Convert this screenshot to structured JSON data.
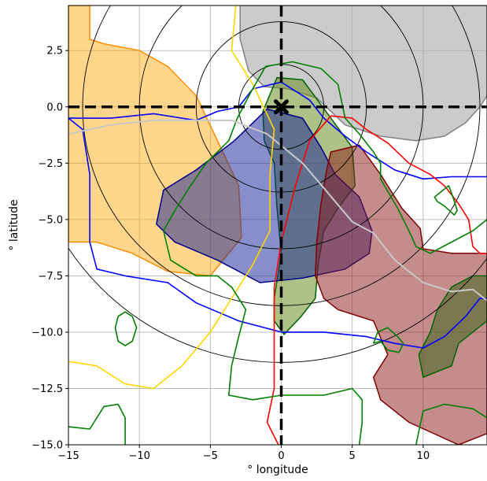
{
  "chart_data": {
    "type": "contour-map",
    "title": "",
    "xlabel": "° longitude",
    "ylabel": "° latitude",
    "xlim": [
      -15,
      14.5
    ],
    "ylim": [
      -15,
      4.5
    ],
    "xticks": [
      -15,
      -10,
      -5,
      0,
      5,
      10
    ],
    "xtick_labels": [
      "−15",
      "−10",
      "−5",
      "0",
      "5",
      "10"
    ],
    "yticks": [
      2.5,
      0.0,
      -2.5,
      -5.0,
      -7.5,
      -10.0,
      -12.5,
      -15.0
    ],
    "ytick_labels": [
      "2.5",
      "0.0",
      "−2.5",
      "−5.0",
      "−7.5",
      "−10.0",
      "−12.5",
      "−15.0"
    ],
    "grid": true,
    "marker": {
      "x": 0,
      "y": 0,
      "symbol": "X",
      "color": "#000000"
    },
    "reference_lines": [
      {
        "orientation": "horizontal",
        "value": 0,
        "style": "dashed",
        "color": "#000000"
      },
      {
        "orientation": "vertical",
        "value": 0,
        "style": "dashed",
        "color": "#000000"
      }
    ],
    "concentric_circles": {
      "center": [
        0,
        0
      ],
      "radii_deg": [
        3,
        6,
        10,
        14,
        18
      ],
      "color": "#000000"
    },
    "filled_regions": [
      {
        "color": "#a9a9a9",
        "edge": "#808080",
        "alpha": 0.6,
        "points": [
          [
            -2.9,
            4.5
          ],
          [
            -2.9,
            3
          ],
          [
            -2.3,
            1.6
          ],
          [
            -1.2,
            0.9
          ],
          [
            0.5,
            0.8
          ],
          [
            2.5,
            0.4
          ],
          [
            4.5,
            -0.8
          ],
          [
            7,
            -1.3
          ],
          [
            9.5,
            -1.5
          ],
          [
            11.5,
            -1.3
          ],
          [
            13,
            -0.7
          ],
          [
            14,
            0
          ],
          [
            14.5,
            0.5
          ],
          [
            14.5,
            4.5
          ]
        ]
      },
      {
        "color": "#ffa500",
        "edge": "#ff8c00",
        "alpha": 0.45,
        "points": [
          [
            -15,
            4.5
          ],
          [
            -13.5,
            4.5
          ],
          [
            -13.5,
            3
          ],
          [
            -12.5,
            2.8
          ],
          [
            -10,
            2.5
          ],
          [
            -8,
            1.8
          ],
          [
            -6,
            0.5
          ],
          [
            -4.5,
            -1.5
          ],
          [
            -3,
            -3.5
          ],
          [
            -2.8,
            -5.8
          ],
          [
            -5,
            -7.5
          ],
          [
            -8,
            -7.3
          ],
          [
            -10.5,
            -6.5
          ],
          [
            -13,
            -6
          ],
          [
            -15,
            -6
          ]
        ]
      },
      {
        "color": "#6b8e23",
        "edge": "#006400",
        "alpha": 0.55,
        "points": [
          [
            -1.3,
            -0.2
          ],
          [
            -0.3,
            1.3
          ],
          [
            1.5,
            1.2
          ],
          [
            3.5,
            -0.5
          ],
          [
            5,
            -1.8
          ],
          [
            5.2,
            -3.5
          ],
          [
            4,
            -4.5
          ],
          [
            3,
            -5.5
          ],
          [
            2.6,
            -7
          ],
          [
            2.4,
            -8.5
          ],
          [
            1.4,
            -9.3
          ],
          [
            0.2,
            -10.1
          ],
          [
            -0.5,
            -9.5
          ],
          [
            -0.5,
            -8.5
          ],
          [
            0,
            -6.5
          ],
          [
            -0.3,
            -4.5
          ],
          [
            -0.5,
            -2.5
          ],
          [
            -1.2,
            -1.5
          ]
        ]
      },
      {
        "color": "#0f1e96",
        "edge": "#00008b",
        "alpha": 0.5,
        "points": [
          [
            -6,
            -2.8
          ],
          [
            -3.3,
            -1.5
          ],
          [
            -1,
            -0.1
          ],
          [
            1.5,
            -0.5
          ],
          [
            2.8,
            -1.8
          ],
          [
            3.8,
            -3
          ],
          [
            5.5,
            -4
          ],
          [
            6.4,
            -5.5
          ],
          [
            6.2,
            -6.5
          ],
          [
            4.5,
            -7.2
          ],
          [
            1.5,
            -7.6
          ],
          [
            -1.5,
            -7.8
          ],
          [
            -4.5,
            -6.8
          ],
          [
            -7.5,
            -6
          ],
          [
            -8.8,
            -5.2
          ],
          [
            -8.3,
            -3.7
          ]
        ]
      },
      {
        "color": "#8b1a1a",
        "edge": "#800000",
        "alpha": 0.5,
        "points": [
          [
            3.5,
            -2
          ],
          [
            5.5,
            -1.7
          ],
          [
            7,
            -3
          ],
          [
            8.5,
            -4.5
          ],
          [
            9.8,
            -5.4
          ],
          [
            10,
            -6.3
          ],
          [
            12,
            -6.5
          ],
          [
            14.5,
            -6.5
          ],
          [
            14.5,
            -14.5
          ],
          [
            12.5,
            -15
          ],
          [
            9,
            -14
          ],
          [
            7,
            -13
          ],
          [
            6.5,
            -12
          ],
          [
            7.5,
            -11
          ],
          [
            6.5,
            -9.5
          ],
          [
            4,
            -9
          ],
          [
            3,
            -8.5
          ],
          [
            2.4,
            -7.5
          ],
          [
            2.5,
            -6
          ],
          [
            2.8,
            -4.3
          ],
          [
            3.2,
            -2.8
          ]
        ]
      },
      {
        "color": "#556b2f",
        "edge": "#006400",
        "alpha": 0.65,
        "points": [
          [
            12,
            -8
          ],
          [
            13.5,
            -7.5
          ],
          [
            14.5,
            -7.5
          ],
          [
            14.5,
            -9.5
          ],
          [
            12.5,
            -10.5
          ],
          [
            12,
            -11.5
          ],
          [
            10,
            -12
          ],
          [
            9.7,
            -11
          ],
          [
            10.5,
            -10
          ],
          [
            11,
            -9
          ]
        ]
      }
    ],
    "line_contours": [
      {
        "color": "#0000ff",
        "points": [
          [
            -15,
            -0.5
          ],
          [
            -14,
            -1
          ],
          [
            -13.5,
            -3
          ],
          [
            -13.5,
            -6
          ],
          [
            -13,
            -7.2
          ],
          [
            -11,
            -7.5
          ],
          [
            -8,
            -7.8
          ],
          [
            -6,
            -8.7
          ],
          [
            -3,
            -9.5
          ],
          [
            0,
            -10
          ],
          [
            3,
            -10
          ],
          [
            6,
            -10.2
          ],
          [
            8,
            -10.5
          ],
          [
            10,
            -10.7
          ],
          [
            11.5,
            -10.2
          ],
          [
            13,
            -9.3
          ],
          [
            14,
            -8.5
          ],
          [
            14.5,
            -8.5
          ]
        ]
      },
      {
        "color": "#0000ff",
        "points": [
          [
            -15,
            -0.5
          ],
          [
            -12,
            -0.5
          ],
          [
            -9,
            -0.3
          ],
          [
            -6,
            -0.6
          ],
          [
            -4.5,
            -0.2
          ],
          [
            -3,
            0
          ],
          [
            -2,
            0.8
          ],
          [
            0,
            1.1
          ],
          [
            2,
            0.3
          ],
          [
            3,
            -0.5
          ],
          [
            4.5,
            -1.3
          ],
          [
            6,
            -2
          ],
          [
            8,
            -2.8
          ],
          [
            10,
            -3.2
          ],
          [
            12,
            -3.1
          ],
          [
            14.5,
            -3.1
          ]
        ]
      },
      {
        "color": "#ffd700",
        "points": [
          [
            -3.2,
            4.5
          ],
          [
            -3.5,
            2.5
          ],
          [
            -2,
            1
          ],
          [
            -0.5,
            -1
          ],
          [
            -0.8,
            -3
          ],
          [
            -0.8,
            -5.5
          ],
          [
            -2,
            -7
          ],
          [
            -3.5,
            -8.5
          ],
          [
            -5,
            -10
          ],
          [
            -7,
            -11.5
          ],
          [
            -9,
            -12.5
          ],
          [
            -11,
            -12.3
          ],
          [
            -13,
            -11.5
          ],
          [
            -15,
            -11.3
          ]
        ]
      },
      {
        "color": "#ff0000",
        "points": [
          [
            -0.2,
            -15
          ],
          [
            -1,
            -14
          ],
          [
            -0.5,
            -12.5
          ],
          [
            -0.5,
            -10
          ],
          [
            -0.5,
            -8
          ],
          [
            0,
            -6
          ],
          [
            1,
            -3.5
          ],
          [
            2,
            -1.5
          ],
          [
            3.5,
            -0.4
          ],
          [
            5,
            -0.5
          ],
          [
            6,
            -1
          ],
          [
            7.5,
            -1.6
          ],
          [
            9,
            -2.5
          ],
          [
            10.5,
            -3
          ],
          [
            11.5,
            -3.5
          ],
          [
            12.5,
            -4.3
          ],
          [
            13.2,
            -5
          ],
          [
            13.5,
            -6.2
          ],
          [
            14,
            -6.5
          ],
          [
            14.5,
            -6.5
          ]
        ]
      },
      {
        "color": "#008000",
        "points": [
          [
            -8.3,
            -5.5
          ],
          [
            -7.5,
            -4.6
          ],
          [
            -6.5,
            -3.6
          ],
          [
            -5.3,
            -2.5
          ],
          [
            -3.7,
            -1.5
          ],
          [
            -3.1,
            -0.5
          ],
          [
            -2.1,
            0.7
          ],
          [
            -1.1,
            1.8
          ],
          [
            0.8,
            2
          ],
          [
            2.8,
            1.7
          ],
          [
            4,
            1
          ],
          [
            4.5,
            -0.5
          ],
          [
            5.5,
            -1.2
          ],
          [
            6.5,
            -2
          ],
          [
            7,
            -2.5
          ],
          [
            7,
            -3.2
          ],
          [
            8.2,
            -4.5
          ],
          [
            9,
            -5.5
          ],
          [
            9.5,
            -6.2
          ],
          [
            10.5,
            -6.5
          ],
          [
            12,
            -6
          ],
          [
            13.5,
            -5.5
          ],
          [
            14.5,
            -5
          ]
        ]
      },
      {
        "color": "#008000",
        "points": [
          [
            -8.3,
            -5.5
          ],
          [
            -7.8,
            -6.8
          ],
          [
            -6,
            -7.5
          ],
          [
            -4.5,
            -7.5
          ],
          [
            -3.5,
            -8
          ],
          [
            -2.5,
            -9
          ],
          [
            -3,
            -10.2
          ],
          [
            -3.5,
            -11.5
          ],
          [
            -3.7,
            -12.8
          ],
          [
            -2,
            -13
          ],
          [
            0,
            -12.8
          ],
          [
            3,
            -12.8
          ],
          [
            5,
            -12.5
          ],
          [
            5.7,
            -13
          ],
          [
            5.7,
            -14
          ],
          [
            5.5,
            -15
          ]
        ]
      },
      {
        "color": "#008000",
        "points": [
          [
            -11.5,
            -9.3
          ],
          [
            -11,
            -9.1
          ],
          [
            -10.5,
            -9.3
          ],
          [
            -10.2,
            -9.8
          ],
          [
            -10.5,
            -10.4
          ],
          [
            -11,
            -10.6
          ],
          [
            -11.5,
            -10.4
          ],
          [
            -11.7,
            -9.8
          ],
          [
            -11.5,
            -9.3
          ]
        ]
      },
      {
        "color": "#008000",
        "points": [
          [
            -15,
            -14.2
          ],
          [
            -13.5,
            -14.3
          ],
          [
            -12.5,
            -13.3
          ],
          [
            -11.5,
            -13.2
          ],
          [
            -11,
            -13.8
          ],
          [
            -11,
            -15
          ]
        ]
      },
      {
        "color": "#008000",
        "points": [
          [
            11,
            -3.9
          ],
          [
            11.8,
            -3.5
          ],
          [
            12.1,
            -4
          ],
          [
            12.4,
            -4.6
          ],
          [
            12.2,
            -4.8
          ],
          [
            11.5,
            -4.4
          ],
          [
            11,
            -4.2
          ],
          [
            10.8,
            -4
          ],
          [
            11,
            -3.9
          ]
        ]
      },
      {
        "color": "#008000",
        "points": [
          [
            9.5,
            -15
          ],
          [
            10,
            -13.5
          ],
          [
            11.5,
            -13.2
          ],
          [
            13.5,
            -13.4
          ],
          [
            14.5,
            -13.8
          ]
        ]
      },
      {
        "color": "#008000",
        "points": [
          [
            6.5,
            -10.5
          ],
          [
            7,
            -10.4
          ],
          [
            7.5,
            -10.8
          ],
          [
            8.3,
            -10.9
          ],
          [
            8.6,
            -10.5
          ],
          [
            8.2,
            -10.2
          ],
          [
            7.5,
            -9.8
          ],
          [
            6.8,
            -10
          ],
          [
            6.5,
            -10.5
          ]
        ]
      },
      {
        "color": "#c8c8c8",
        "points": [
          [
            -15,
            -1.2
          ],
          [
            -12,
            -0.8
          ],
          [
            -9,
            -0.6
          ],
          [
            -6,
            -0.6
          ],
          [
            -3.5,
            -0.6
          ],
          [
            -1,
            -1.2
          ],
          [
            1.5,
            -2.5
          ],
          [
            3,
            -3.6
          ],
          [
            5,
            -5.1
          ],
          [
            6.5,
            -5.6
          ],
          [
            8,
            -6.8
          ],
          [
            10,
            -7.8
          ],
          [
            12,
            -8.2
          ],
          [
            13.5,
            -8.1
          ],
          [
            14.5,
            -8.6
          ]
        ]
      }
    ]
  }
}
